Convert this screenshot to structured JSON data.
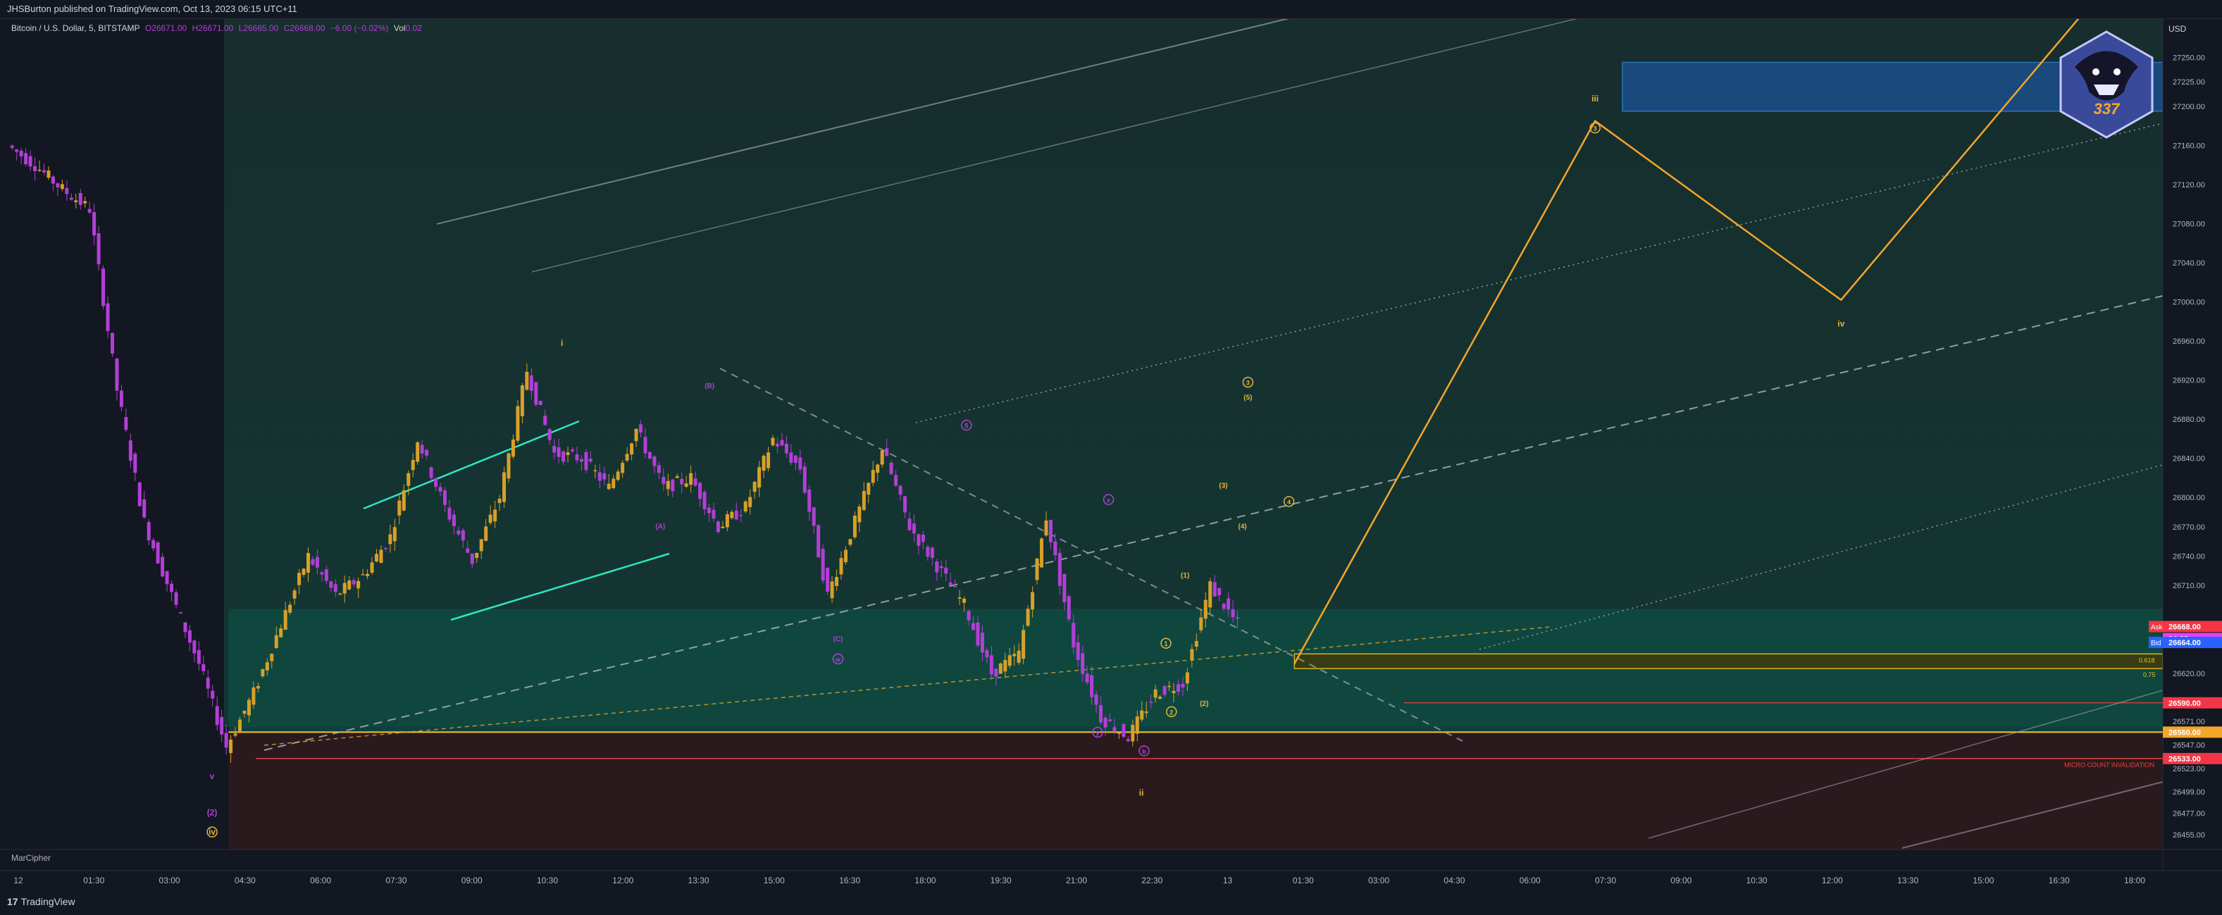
{
  "header": {
    "publisher": "JHSBurton published on TradingView.com, Oct 13, 2023 06:15 UTC+11"
  },
  "legend": {
    "symbol": "Bitcoin / U.S. Dollar, 5, BITSTAMP",
    "open": "O26671.00",
    "high": "H26671.00",
    "low": "L26665.00",
    "close": "C26668.00",
    "change": "−6.00 (−0.02%)",
    "volume_label": "Vol",
    "volume": "0.02"
  },
  "currency": "USD",
  "indicator_name": "MarCipher",
  "brand": "TradingView",
  "colors": {
    "background": "#131722",
    "bull_candle": "#d7a02a",
    "bear_candle": "#b23fd6",
    "wave_projection": "#f4a62a",
    "channel": "#2ee6c0",
    "support_zone": "#0e4d44",
    "target_zone": "#1b4f8a",
    "invalidation": "#e0453c"
  },
  "chart_data": {
    "type": "candlestick",
    "symbol": "BTCUSD",
    "timeframe": "5",
    "x_ticks": [
      "12",
      "01:30",
      "03:00",
      "04:30",
      "06:00",
      "07:30",
      "09:00",
      "10:30",
      "12:00",
      "13:30",
      "15:00",
      "16:30",
      "18:00",
      "19:30",
      "21:00",
      "22:30",
      "13",
      "01:30",
      "03:00",
      "04:30",
      "06:00",
      "07:30",
      "09:00",
      "10:30",
      "12:00",
      "13:30",
      "15:00",
      "16:30",
      "18:00"
    ],
    "y_ticks": [
      27250,
      27225,
      27200,
      27160,
      27120,
      27080,
      27040,
      27000,
      26960,
      26920,
      26880,
      26840,
      26800,
      26770,
      26740,
      26710,
      26620,
      26571,
      26547,
      26523,
      26499,
      26477,
      26455
    ],
    "ylim": [
      26440,
      27290
    ],
    "price_path": [
      [
        0,
        27160
      ],
      [
        1,
        27140
      ],
      [
        2,
        27115
      ],
      [
        3,
        27095
      ],
      [
        4,
        26910
      ],
      [
        5,
        26775
      ],
      [
        6,
        26700
      ],
      [
        7,
        26630
      ],
      [
        8,
        26545
      ],
      [
        9,
        26600
      ],
      [
        10,
        26670
      ],
      [
        11,
        26740
      ],
      [
        12,
        26700
      ],
      [
        13,
        26720
      ],
      [
        14,
        26760
      ],
      [
        15,
        26860
      ],
      [
        16,
        26790
      ],
      [
        17,
        26735
      ],
      [
        18,
        26800
      ],
      [
        19,
        26930
      ],
      [
        20,
        26845
      ],
      [
        21,
        26840
      ],
      [
        22,
        26810
      ],
      [
        23,
        26870
      ],
      [
        24,
        26810
      ],
      [
        25,
        26820
      ],
      [
        26,
        26770
      ],
      [
        27,
        26790
      ],
      [
        28,
        26860
      ],
      [
        29,
        26830
      ],
      [
        30,
        26700
      ],
      [
        31,
        26775
      ],
      [
        32,
        26850
      ],
      [
        33,
        26770
      ],
      [
        34,
        26730
      ],
      [
        35,
        26690
      ],
      [
        36,
        26620
      ],
      [
        37,
        26640
      ],
      [
        38,
        26780
      ],
      [
        39,
        26650
      ],
      [
        40,
        26575
      ],
      [
        41,
        26555
      ],
      [
        42,
        26600
      ],
      [
        43,
        26610
      ],
      [
        44,
        26710
      ],
      [
        45,
        26670
      ]
    ],
    "price_labels": [
      {
        "label": "Ask",
        "value": "26668.00"
      },
      {
        "label": "",
        "value": "04:02"
      },
      {
        "label": "Bid",
        "value": "26664.00"
      },
      {
        "label": "",
        "value": "26590.00"
      },
      {
        "label": "",
        "value": "26560.00"
      },
      {
        "label": "",
        "value": "26533.00"
      }
    ],
    "zones": [
      {
        "name": "target",
        "from": 27195,
        "to": 27245
      },
      {
        "name": "support",
        "from": 26560,
        "to": 26686
      },
      {
        "name": "box",
        "from": 26625,
        "to": 26640
      },
      {
        "name": "invalidation",
        "from": 26440,
        "to": 26560
      }
    ],
    "fib_labels": [
      "0.618",
      "0.75"
    ],
    "invalidation_label": "MICRO COUNT INVALIDATION",
    "projection": [
      [
        47,
        26630
      ],
      [
        58,
        27185
      ],
      [
        67,
        27002
      ],
      [
        76,
        27300
      ]
    ],
    "wave_labels": {
      "primary": [
        "i",
        "ii",
        "iii",
        "iv",
        "iv",
        "v"
      ],
      "minor": [
        "(2)",
        "(A)",
        "(B)",
        "(C)",
        "(1)",
        "(2)",
        "(3)",
        "(4)",
        "(5)"
      ],
      "circled": [
        "1",
        "2",
        "3",
        "4",
        "5",
        "x",
        "y",
        "w",
        "3",
        "b"
      ]
    }
  }
}
